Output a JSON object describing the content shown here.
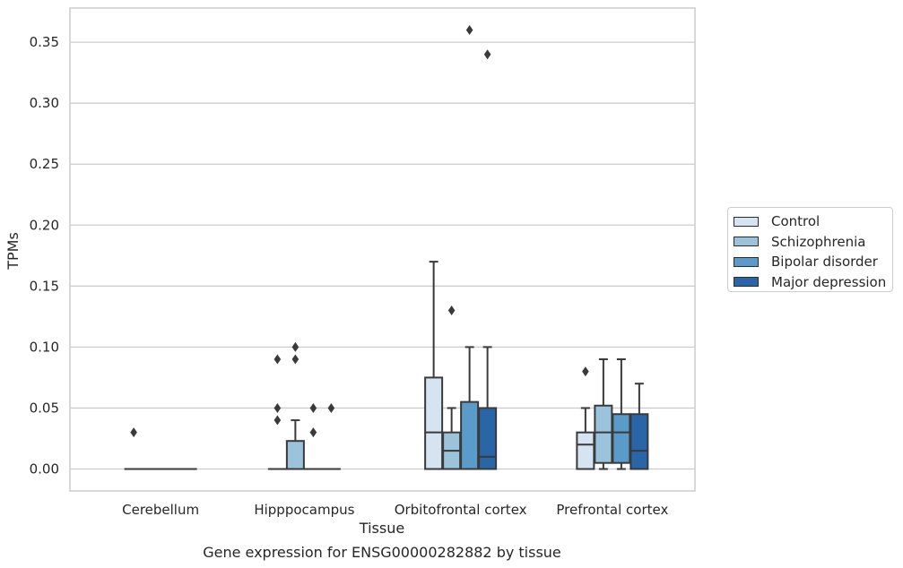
{
  "chart_data": {
    "type": "box",
    "title": "",
    "caption": "Gene expression for ENSG00000282882 by tissue",
    "xlabel": "Tissue",
    "ylabel": "TPMs",
    "ylim": [
      -0.018,
      0.378
    ],
    "yticks": [
      0.0,
      0.05,
      0.1,
      0.15,
      0.2,
      0.25,
      0.3,
      0.35
    ],
    "ytick_labels": [
      "0.00",
      "0.05",
      "0.10",
      "0.15",
      "0.20",
      "0.25",
      "0.30",
      "0.35"
    ],
    "grid": "horizontal",
    "legend_position": "right",
    "categories": [
      "Cerebellum",
      "Hipppocampus",
      "Orbitofrontal cortex",
      "Prefrontal cortex"
    ],
    "series": [
      {
        "name": "Control",
        "color": "#d6e3f0",
        "boxes": [
          {
            "q1": 0,
            "median": 0,
            "q3": 0,
            "whisker_low": 0,
            "whisker_high": 0,
            "outliers": [
              0.03
            ]
          },
          {
            "q1": 0,
            "median": 0,
            "q3": 0,
            "whisker_low": 0,
            "whisker_high": 0,
            "outliers": [
              0.04,
              0.05,
              0.09
            ]
          },
          {
            "q1": 0,
            "median": 0.03,
            "q3": 0.075,
            "whisker_low": 0,
            "whisker_high": 0.17,
            "outliers": []
          },
          {
            "q1": 0,
            "median": 0.02,
            "q3": 0.03,
            "whisker_low": 0,
            "whisker_high": 0.05,
            "outliers": [
              0.08
            ]
          }
        ]
      },
      {
        "name": "Schizophrenia",
        "color": "#9cc3dc",
        "boxes": [
          {
            "q1": 0,
            "median": 0,
            "q3": 0,
            "whisker_low": 0,
            "whisker_high": 0,
            "outliers": []
          },
          {
            "q1": 0,
            "median": 0,
            "q3": 0.023,
            "whisker_low": 0,
            "whisker_high": 0.04,
            "outliers": [
              0.09,
              0.1
            ]
          },
          {
            "q1": 0,
            "median": 0.015,
            "q3": 0.03,
            "whisker_low": 0,
            "whisker_high": 0.05,
            "outliers": [
              0.13
            ]
          },
          {
            "q1": 0.005,
            "median": 0.03,
            "q3": 0.052,
            "whisker_low": 0,
            "whisker_high": 0.09,
            "outliers": []
          }
        ]
      },
      {
        "name": "Bipolar disorder",
        "color": "#5a9bc9",
        "boxes": [
          {
            "q1": 0,
            "median": 0,
            "q3": 0,
            "whisker_low": 0,
            "whisker_high": 0,
            "outliers": []
          },
          {
            "q1": 0,
            "median": 0,
            "q3": 0,
            "whisker_low": 0,
            "whisker_high": 0,
            "outliers": [
              0.03,
              0.05
            ]
          },
          {
            "q1": 0,
            "median": 0,
            "q3": 0.055,
            "whisker_low": 0,
            "whisker_high": 0.1,
            "outliers": [
              0.36
            ]
          },
          {
            "q1": 0.005,
            "median": 0.03,
            "q3": 0.045,
            "whisker_low": 0,
            "whisker_high": 0.09,
            "outliers": []
          }
        ]
      },
      {
        "name": "Major depression",
        "color": "#2866a8",
        "boxes": [
          {
            "q1": 0,
            "median": 0,
            "q3": 0,
            "whisker_low": 0,
            "whisker_high": 0,
            "outliers": []
          },
          {
            "q1": 0,
            "median": 0,
            "q3": 0,
            "whisker_low": 0,
            "whisker_high": 0,
            "outliers": [
              0.05
            ]
          },
          {
            "q1": 0,
            "median": 0.01,
            "q3": 0.05,
            "whisker_low": 0,
            "whisker_high": 0.1,
            "outliers": [
              0.34
            ]
          },
          {
            "q1": 0,
            "median": 0.015,
            "q3": 0.045,
            "whisker_low": 0,
            "whisker_high": 0.07,
            "outliers": []
          }
        ]
      }
    ]
  }
}
